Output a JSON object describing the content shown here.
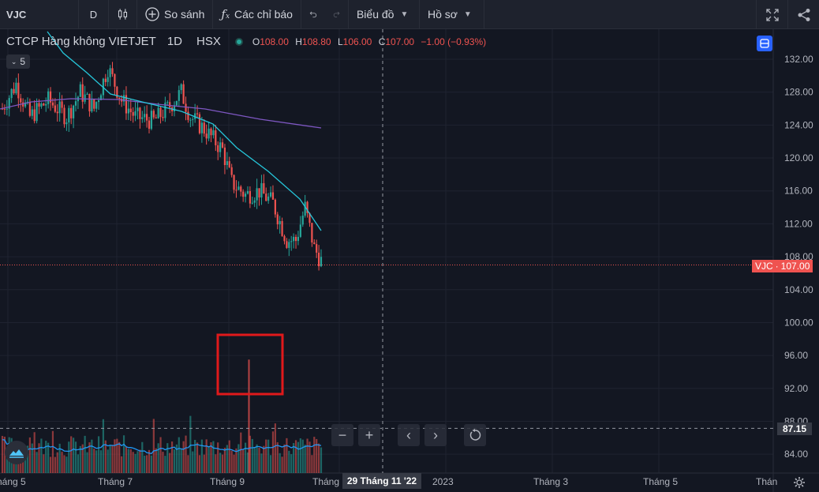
{
  "toolbar": {
    "symbol": "VJC",
    "interval": "D",
    "compare_label": "So sánh",
    "indicators_label": "Các chỉ báo",
    "chart_label": "Biểu đồ",
    "profile_label": "Hồ sơ"
  },
  "legend": {
    "name": "CTCP Hàng không VIETJET",
    "interval": "1D",
    "exchange": "HSX",
    "o_key": "O",
    "o_val": "108.00",
    "h_key": "H",
    "h_val": "108.80",
    "l_key": "L",
    "l_val": "106.00",
    "c_key": "C",
    "c_val": "107.00",
    "change": "−1.00 (−0.93%)",
    "indicator_count": "5"
  },
  "price_axis": {
    "ticks": [
      "132.00",
      "128.00",
      "124.00",
      "120.00",
      "116.00",
      "112.00",
      "108.00",
      "104.00",
      "100.00",
      "96.00",
      "92.00",
      "88.00",
      "84.00"
    ],
    "last_symbol": "VJC",
    "last_price": "107.00",
    "crosshair_price": "87.15"
  },
  "time_axis": {
    "labels": [
      "háng 5",
      "Tháng 7",
      "Tháng 9",
      "Tháng",
      "2023",
      "Tháng 3",
      "Tháng 5",
      "Thán"
    ],
    "crosshair_date": "29 Tháng 11 '22"
  },
  "colors": {
    "up": "#26a69a",
    "down": "#ef5350",
    "ma_fast": "#26c6da",
    "ma_slow": "#7e57c2",
    "volume_ma": "#2196f3",
    "highlight": "#e0191b"
  },
  "chart_data": {
    "type": "candlestick",
    "symbol": "VJC",
    "y_axis_range": [
      82,
      134
    ],
    "last_close": 107.0,
    "crosshair_price": 87.15,
    "crosshair_date": "29 Tháng 11 '22"
  }
}
